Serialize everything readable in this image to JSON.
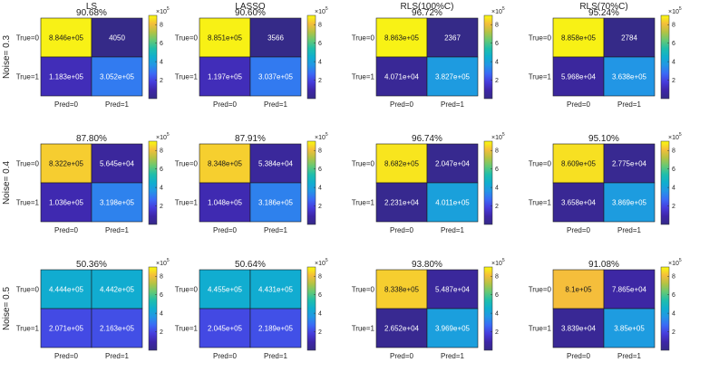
{
  "figure": {
    "column_titles": [
      "LS",
      "LASSO",
      "RLS(100%C)",
      "RLS(70%C)"
    ],
    "row_labels": [
      "Noise= 0.3",
      "Noise= 0.4",
      "Noise= 0.5"
    ],
    "row_tick_labels": [
      "True=0",
      "True=1"
    ],
    "col_tick_labels": [
      "Pred=0",
      "Pred=1"
    ],
    "colorbar_ticks": [
      "2",
      "4",
      "6",
      "8"
    ],
    "colorbar_multiplier_base": "×10",
    "colorbar_multiplier_exp": "5"
  },
  "chart_data": [
    {
      "type": "heatmap",
      "model": "LS",
      "noise": 0.3,
      "accuracy_label": "90.68%",
      "values": [
        [
          884600,
          4050
        ],
        [
          118300,
          305200
        ]
      ],
      "cell_labels": [
        [
          "8.846e+05",
          "4050"
        ],
        [
          "1.183e+05",
          "3.052e+05"
        ]
      ]
    },
    {
      "type": "heatmap",
      "model": "LASSO",
      "noise": 0.3,
      "accuracy_label": "90.60%",
      "values": [
        [
          885100,
          3566
        ],
        [
          119700,
          303700
        ]
      ],
      "cell_labels": [
        [
          "8.851e+05",
          "3566"
        ],
        [
          "1.197e+05",
          "3.037e+05"
        ]
      ]
    },
    {
      "type": "heatmap",
      "model": "RLS(100%C)",
      "noise": 0.3,
      "accuracy_label": "96.72%",
      "values": [
        [
          886300,
          2367
        ],
        [
          40710,
          382700
        ]
      ],
      "cell_labels": [
        [
          "8.863e+05",
          "2367"
        ],
        [
          "4.071e+04",
          "3.827e+05"
        ]
      ]
    },
    {
      "type": "heatmap",
      "model": "RLS(70%C)",
      "noise": 0.3,
      "accuracy_label": "95.24%",
      "values": [
        [
          885800,
          2784
        ],
        [
          59680,
          363800
        ]
      ],
      "cell_labels": [
        [
          "8.858e+05",
          "2784"
        ],
        [
          "5.968e+04",
          "3.638e+05"
        ]
      ]
    },
    {
      "type": "heatmap",
      "model": "LS",
      "noise": 0.4,
      "accuracy_label": "87.80%",
      "values": [
        [
          832200,
          56450
        ],
        [
          103600,
          319800
        ]
      ],
      "cell_labels": [
        [
          "8.322e+05",
          "5.645e+04"
        ],
        [
          "1.036e+05",
          "3.198e+05"
        ]
      ]
    },
    {
      "type": "heatmap",
      "model": "LASSO",
      "noise": 0.4,
      "accuracy_label": "87.91%",
      "values": [
        [
          834800,
          53840
        ],
        [
          104800,
          318600
        ]
      ],
      "cell_labels": [
        [
          "8.348e+05",
          "5.384e+04"
        ],
        [
          "1.048e+05",
          "3.186e+05"
        ]
      ]
    },
    {
      "type": "heatmap",
      "model": "RLS(100%C)",
      "noise": 0.4,
      "accuracy_label": "96.74%",
      "values": [
        [
          868200,
          20470
        ],
        [
          22310,
          401100
        ]
      ],
      "cell_labels": [
        [
          "8.682e+05",
          "2.047e+04"
        ],
        [
          "2.231e+04",
          "4.011e+05"
        ]
      ]
    },
    {
      "type": "heatmap",
      "model": "RLS(70%C)",
      "noise": 0.4,
      "accuracy_label": "95.10%",
      "values": [
        [
          860900,
          27750
        ],
        [
          36580,
          386900
        ]
      ],
      "cell_labels": [
        [
          "8.609e+05",
          "2.775e+04"
        ],
        [
          "3.658e+04",
          "3.869e+05"
        ]
      ]
    },
    {
      "type": "heatmap",
      "model": "LS",
      "noise": 0.5,
      "accuracy_label": "50.36%",
      "values": [
        [
          444400,
          444200
        ],
        [
          207100,
          216300
        ]
      ],
      "cell_labels": [
        [
          "4.444e+05",
          "4.442e+05"
        ],
        [
          "2.071e+05",
          "2.163e+05"
        ]
      ]
    },
    {
      "type": "heatmap",
      "model": "LASSO",
      "noise": 0.5,
      "accuracy_label": "50.64%",
      "values": [
        [
          445500,
          443100
        ],
        [
          204500,
          218900
        ]
      ],
      "cell_labels": [
        [
          "4.455e+05",
          "4.431e+05"
        ],
        [
          "2.045e+05",
          "2.189e+05"
        ]
      ]
    },
    {
      "type": "heatmap",
      "model": "RLS(100%C)",
      "noise": 0.5,
      "accuracy_label": "93.80%",
      "values": [
        [
          833800,
          54870
        ],
        [
          26520,
          396900
        ]
      ],
      "cell_labels": [
        [
          "8.338e+05",
          "5.487e+04"
        ],
        [
          "2.652e+04",
          "3.969e+05"
        ]
      ]
    },
    {
      "type": "heatmap",
      "model": "RLS(70%C)",
      "noise": 0.5,
      "accuracy_label": "91.08%",
      "values": [
        [
          810000,
          78650
        ],
        [
          38390,
          385000
        ]
      ],
      "cell_labels": [
        [
          "8.1e+05",
          "7.865e+04"
        ],
        [
          "3.839e+04",
          "3.85e+05"
        ]
      ]
    }
  ]
}
